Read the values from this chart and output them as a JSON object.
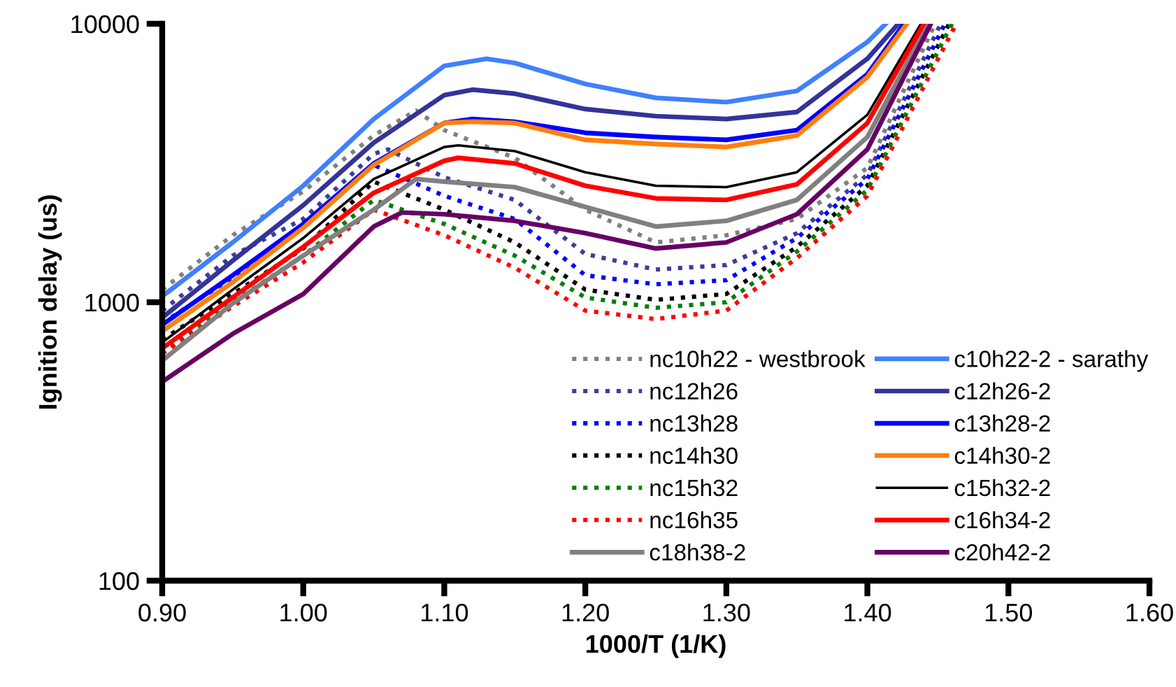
{
  "chart_data": {
    "type": "line",
    "xlabel": "1000/T (1/K)",
    "ylabel": "Ignition delay (us)",
    "log": "y",
    "xlim": [
      0.9,
      1.6
    ],
    "xticks": [
      {
        "value": 0.9,
        "label": "0.90"
      },
      {
        "value": 1.0,
        "label": "1.00"
      },
      {
        "value": 1.1,
        "label": "1.10"
      },
      {
        "value": 1.2,
        "label": "1.20"
      },
      {
        "value": 1.3,
        "label": "1.30"
      },
      {
        "value": 1.4,
        "label": "1.40"
      },
      {
        "value": 1.5,
        "label": "1.50"
      },
      {
        "value": 1.6,
        "label": "1.60"
      }
    ],
    "ylim": [
      100,
      10000
    ],
    "yticks": [
      100,
      1000,
      10000
    ],
    "grid": false,
    "legend": "bottom right",
    "marker": "none",
    "series": [
      {
        "name": "nc10h22 - westbrook",
        "color": "#808080",
        "line_style": "dotted",
        "x": [
          0.9,
          0.95,
          1.0,
          1.05,
          1.08,
          1.1,
          1.15,
          1.2,
          1.25,
          1.3,
          1.35,
          1.4,
          1.448
        ],
        "values": [
          1110,
          1740,
          2500,
          3970,
          4880,
          4150,
          3300,
          2150,
          1640,
          1740,
          1990,
          3040,
          10000
        ]
      },
      {
        "name": "nc12h26",
        "color": "#3d3d99",
        "line_style": "dotted",
        "x": [
          0.9,
          0.95,
          1.0,
          1.05,
          1.06,
          1.1,
          1.15,
          1.2,
          1.25,
          1.3,
          1.35,
          1.4,
          1.452
        ],
        "values": [
          933,
          1470,
          1990,
          3410,
          3540,
          2810,
          2330,
          1490,
          1310,
          1360,
          1770,
          2870,
          10000
        ]
      },
      {
        "name": "nc13h28",
        "color": "#0000ff",
        "line_style": "dotted",
        "x": [
          0.9,
          0.95,
          1.0,
          1.05,
          1.1,
          1.15,
          1.2,
          1.25,
          1.3,
          1.35,
          1.4,
          1.455
        ],
        "values": [
          840,
          1230,
          1870,
          3110,
          2410,
          1990,
          1250,
          1160,
          1200,
          1700,
          2770,
          10000
        ]
      },
      {
        "name": "nc14h30",
        "color": "#000000",
        "line_style": "dotted",
        "x": [
          0.9,
          0.95,
          1.0,
          1.05,
          1.1,
          1.15,
          1.2,
          1.25,
          1.3,
          1.35,
          1.4,
          1.458
        ],
        "values": [
          733,
          1070,
          1560,
          2710,
          2150,
          1640,
          1110,
          1020,
          1070,
          1580,
          2620,
          10000
        ]
      },
      {
        "name": "nc15h32",
        "color": "#008000",
        "line_style": "dotted",
        "x": [
          0.9,
          0.95,
          1.0,
          1.05,
          1.1,
          1.15,
          1.2,
          1.25,
          1.3,
          1.35,
          1.4,
          1.46
        ],
        "values": [
          654,
          1000,
          1470,
          2330,
          1910,
          1470,
          1040,
          955,
          1000,
          1520,
          2530,
          10000
        ]
      },
      {
        "name": "nc16h35",
        "color": "#ff0000",
        "line_style": "dotted",
        "x": [
          0.9,
          0.95,
          1.0,
          1.05,
          1.1,
          1.15,
          1.2,
          1.25,
          1.3,
          1.35,
          1.4,
          1.463
        ],
        "values": [
          654,
          966,
          1390,
          2150,
          1740,
          1330,
          933,
          870,
          933,
          1440,
          2410,
          10000
        ]
      },
      {
        "name": "c18h38-2",
        "color": "#808080",
        "line_style": "solid",
        "x": [
          0.9,
          0.95,
          1.0,
          1.05,
          1.08,
          1.1,
          1.15,
          1.2,
          1.25,
          1.3,
          1.35,
          1.4,
          1.443
        ],
        "values": [
          617,
          990,
          1470,
          2150,
          2770,
          2710,
          2590,
          2200,
          1870,
          1960,
          2330,
          3920,
          10000
        ]
      },
      {
        "name": "c10h22-2 - sarathy",
        "color": "#4080ff",
        "line_style": "solid",
        "x": [
          0.9,
          0.95,
          1.0,
          1.05,
          1.1,
          1.13,
          1.15,
          1.2,
          1.25,
          1.3,
          1.35,
          1.4,
          1.413
        ],
        "values": [
          1050,
          1640,
          2620,
          4550,
          7060,
          7490,
          7230,
          6080,
          5420,
          5230,
          5740,
          8600,
          10000
        ]
      },
      {
        "name": "c12h26-2",
        "color": "#333399",
        "line_style": "solid",
        "x": [
          0.9,
          0.95,
          1.0,
          1.05,
          1.1,
          1.12,
          1.15,
          1.2,
          1.25,
          1.3,
          1.35,
          1.4,
          1.422
        ],
        "values": [
          880,
          1410,
          2230,
          3740,
          5540,
          5800,
          5610,
          4940,
          4660,
          4550,
          4820,
          7490,
          10000
        ]
      },
      {
        "name": "c13h28-2",
        "color": "#0000ff",
        "line_style": "solid",
        "x": [
          0.9,
          0.95,
          1.0,
          1.05,
          1.1,
          1.12,
          1.15,
          1.2,
          1.25,
          1.3,
          1.35,
          1.4,
          1.426
        ],
        "values": [
          830,
          1250,
          1910,
          3150,
          4400,
          4550,
          4450,
          4060,
          3920,
          3830,
          4150,
          6590,
          10000
        ]
      },
      {
        "name": "c14h30-2",
        "color": "#ff7f0e",
        "line_style": "solid",
        "x": [
          0.9,
          0.95,
          1.0,
          1.05,
          1.1,
          1.12,
          1.15,
          1.2,
          1.25,
          1.3,
          1.35,
          1.4,
          1.428
        ],
        "values": [
          787,
          1180,
          1850,
          3110,
          4400,
          4450,
          4400,
          3830,
          3700,
          3610,
          3970,
          6440,
          10000
        ]
      },
      {
        "name": "c15h32-2",
        "color": "#000000",
        "line_style": "solid",
        "x": [
          0.9,
          0.95,
          1.0,
          1.05,
          1.1,
          1.11,
          1.15,
          1.2,
          1.25,
          1.3,
          1.35,
          1.4,
          1.438
        ],
        "values": [
          717,
          1110,
          1700,
          2770,
          3610,
          3660,
          3490,
          2930,
          2620,
          2590,
          2930,
          4710,
          10000
        ]
      },
      {
        "name": "c16h34-2",
        "color": "#ff0000",
        "line_style": "solid",
        "x": [
          0.9,
          0.95,
          1.0,
          1.05,
          1.1,
          1.11,
          1.15,
          1.2,
          1.25,
          1.3,
          1.35,
          1.4,
          1.44
        ],
        "values": [
          683,
          1040,
          1580,
          2470,
          3220,
          3300,
          3150,
          2620,
          2360,
          2330,
          2650,
          4400,
          10000
        ]
      },
      {
        "name": "c20h42-2",
        "color": "#660066",
        "line_style": "solid",
        "x": [
          0.9,
          0.95,
          1.0,
          1.05,
          1.07,
          1.1,
          1.15,
          1.2,
          1.25,
          1.3,
          1.35,
          1.4,
          1.445
        ],
        "values": [
          518,
          770,
          1070,
          1870,
          2100,
          2070,
          1960,
          1770,
          1560,
          1640,
          2070,
          3540,
          10000
        ]
      }
    ]
  }
}
